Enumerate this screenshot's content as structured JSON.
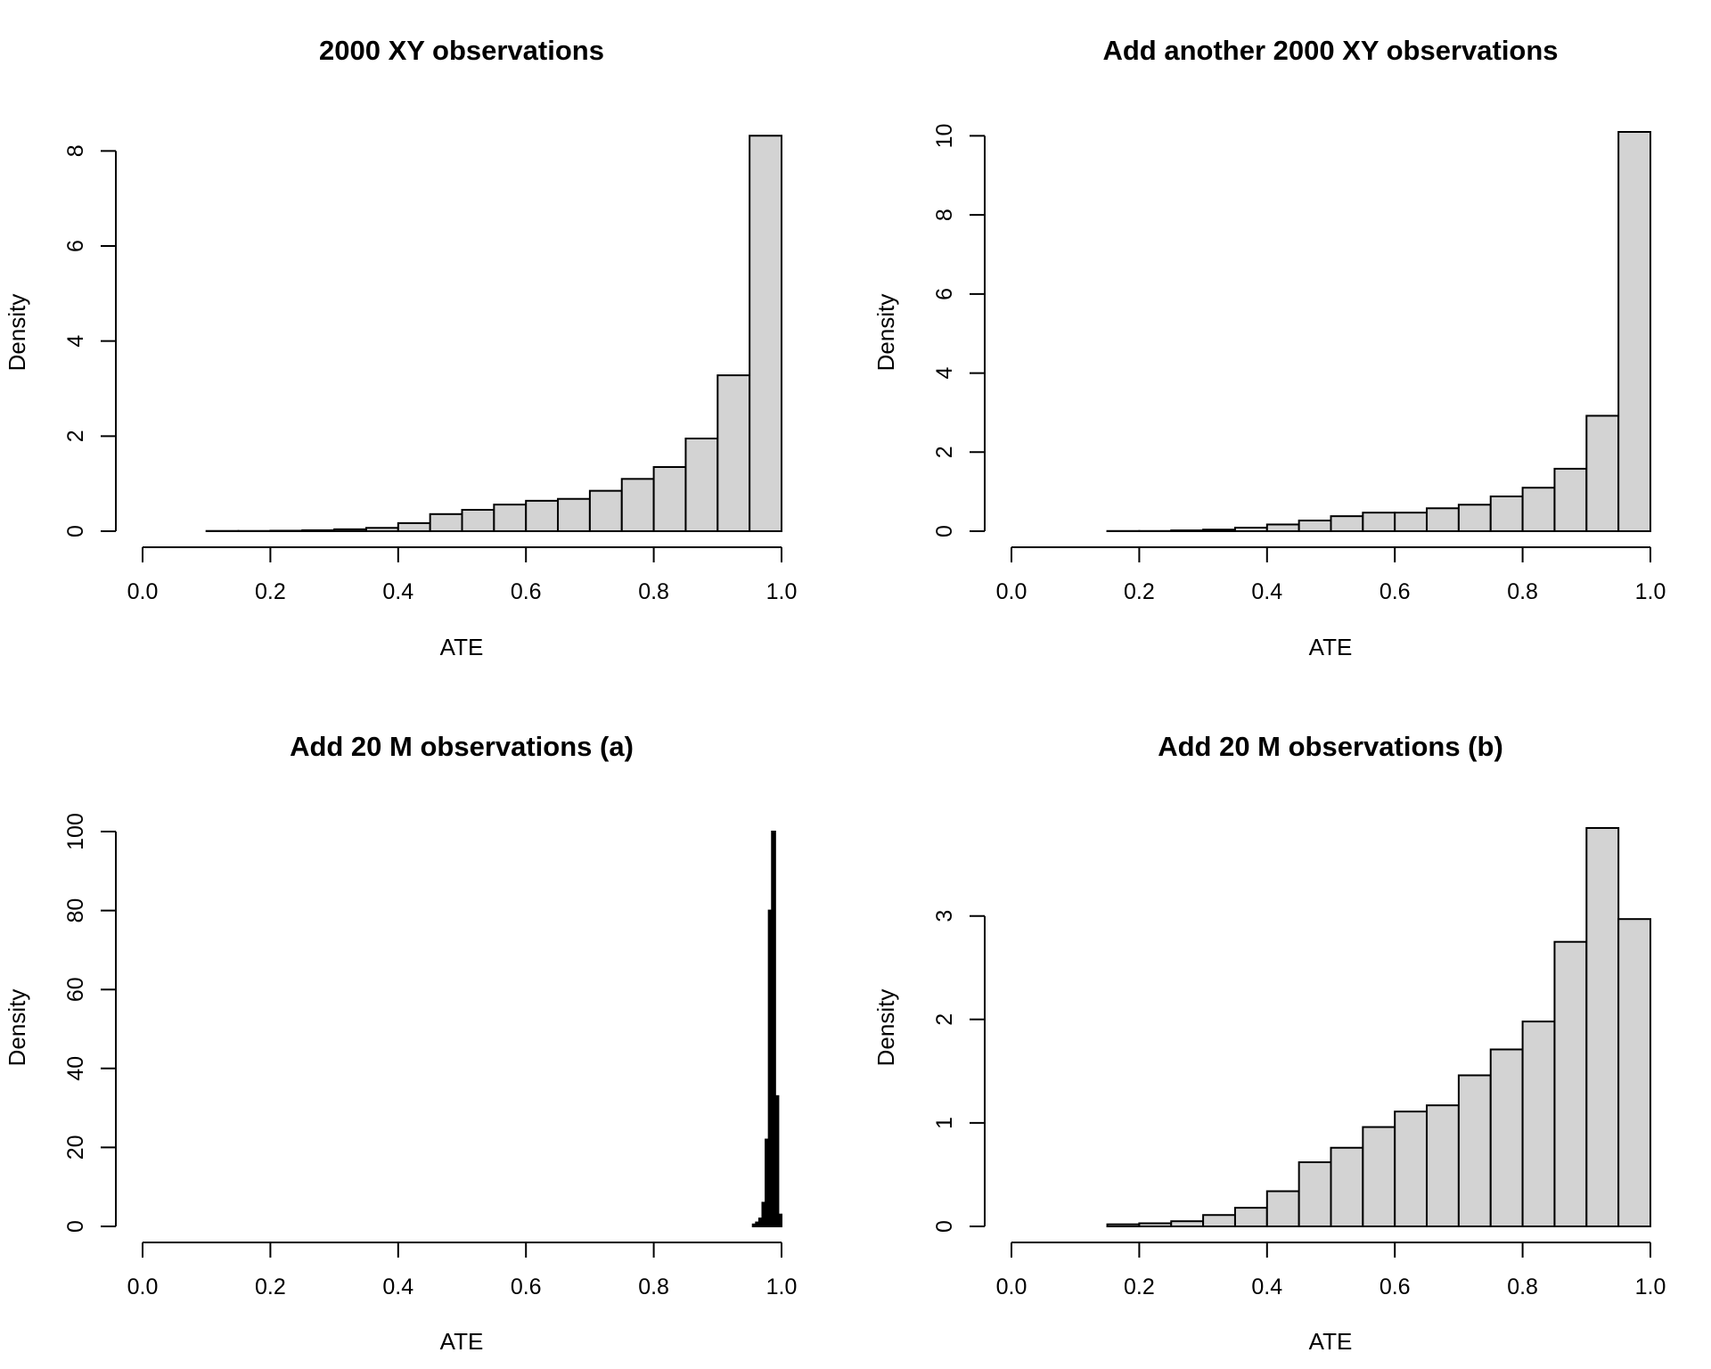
{
  "colors": {
    "bar_fill": "#d3d3d3",
    "bar_fill_dense": "#000000",
    "stroke": "#000000",
    "background": "#ffffff"
  },
  "chart_data": [
    {
      "type": "bar",
      "title": "2000 XY observations",
      "xlabel": "ATE",
      "ylabel": "Density",
      "xlim": [
        0.0,
        1.0
      ],
      "ylim": [
        0,
        8.4
      ],
      "xticks": [
        "0.0",
        "0.2",
        "0.4",
        "0.6",
        "0.8",
        "1.0"
      ],
      "yticks": [
        "0",
        "2",
        "4",
        "6",
        "8"
      ],
      "bins": [
        {
          "x0": 0.1,
          "x1": 0.15,
          "y": 0.005
        },
        {
          "x0": 0.15,
          "x1": 0.2,
          "y": 0.005
        },
        {
          "x0": 0.2,
          "x1": 0.25,
          "y": 0.01
        },
        {
          "x0": 0.25,
          "x1": 0.3,
          "y": 0.02
        },
        {
          "x0": 0.3,
          "x1": 0.35,
          "y": 0.04
        },
        {
          "x0": 0.35,
          "x1": 0.4,
          "y": 0.07
        },
        {
          "x0": 0.4,
          "x1": 0.45,
          "y": 0.17
        },
        {
          "x0": 0.45,
          "x1": 0.5,
          "y": 0.36
        },
        {
          "x0": 0.5,
          "x1": 0.55,
          "y": 0.45
        },
        {
          "x0": 0.55,
          "x1": 0.6,
          "y": 0.56
        },
        {
          "x0": 0.6,
          "x1": 0.65,
          "y": 0.64
        },
        {
          "x0": 0.65,
          "x1": 0.7,
          "y": 0.68
        },
        {
          "x0": 0.7,
          "x1": 0.75,
          "y": 0.85
        },
        {
          "x0": 0.75,
          "x1": 0.8,
          "y": 1.1
        },
        {
          "x0": 0.8,
          "x1": 0.85,
          "y": 1.35
        },
        {
          "x0": 0.85,
          "x1": 0.9,
          "y": 1.95
        },
        {
          "x0": 0.9,
          "x1": 0.95,
          "y": 3.28
        },
        {
          "x0": 0.95,
          "x1": 1.0,
          "y": 8.32
        }
      ]
    },
    {
      "type": "bar",
      "title": "Add another 2000 XY observations",
      "xlabel": "ATE",
      "ylabel": "Density",
      "xlim": [
        0.0,
        1.0
      ],
      "ylim": [
        0,
        10.1
      ],
      "xticks": [
        "0.0",
        "0.2",
        "0.4",
        "0.6",
        "0.8",
        "1.0"
      ],
      "yticks": [
        "0",
        "2",
        "4",
        "6",
        "8",
        "10"
      ],
      "bins": [
        {
          "x0": 0.05,
          "x1": 0.1,
          "y": 0.0
        },
        {
          "x0": 0.1,
          "x1": 0.15,
          "y": 0.0
        },
        {
          "x0": 0.15,
          "x1": 0.2,
          "y": 0.005
        },
        {
          "x0": 0.2,
          "x1": 0.25,
          "y": 0.005
        },
        {
          "x0": 0.25,
          "x1": 0.3,
          "y": 0.02
        },
        {
          "x0": 0.3,
          "x1": 0.35,
          "y": 0.04
        },
        {
          "x0": 0.35,
          "x1": 0.4,
          "y": 0.09
        },
        {
          "x0": 0.4,
          "x1": 0.45,
          "y": 0.17
        },
        {
          "x0": 0.45,
          "x1": 0.5,
          "y": 0.27
        },
        {
          "x0": 0.5,
          "x1": 0.55,
          "y": 0.38
        },
        {
          "x0": 0.55,
          "x1": 0.6,
          "y": 0.47
        },
        {
          "x0": 0.6,
          "x1": 0.65,
          "y": 0.47
        },
        {
          "x0": 0.65,
          "x1": 0.7,
          "y": 0.58
        },
        {
          "x0": 0.7,
          "x1": 0.75,
          "y": 0.67
        },
        {
          "x0": 0.75,
          "x1": 0.8,
          "y": 0.88
        },
        {
          "x0": 0.8,
          "x1": 0.85,
          "y": 1.1
        },
        {
          "x0": 0.85,
          "x1": 0.9,
          "y": 1.58
        },
        {
          "x0": 0.9,
          "x1": 0.95,
          "y": 2.92
        },
        {
          "x0": 0.95,
          "x1": 1.0,
          "y": 10.1
        }
      ]
    },
    {
      "type": "bar",
      "title": "Add 20 M observations (a)",
      "xlabel": "ATE",
      "ylabel": "Density",
      "xlim": [
        0.0,
        1.0
      ],
      "ylim": [
        0,
        100
      ],
      "xticks": [
        "0.0",
        "0.2",
        "0.4",
        "0.6",
        "0.8",
        "1.0"
      ],
      "yticks": [
        "0",
        "20",
        "40",
        "60",
        "80",
        "100"
      ],
      "dense": true,
      "bins": [
        {
          "x0": 0.955,
          "x1": 0.96,
          "y": 0.5
        },
        {
          "x0": 0.96,
          "x1": 0.965,
          "y": 1
        },
        {
          "x0": 0.965,
          "x1": 0.97,
          "y": 2
        },
        {
          "x0": 0.97,
          "x1": 0.975,
          "y": 6
        },
        {
          "x0": 0.975,
          "x1": 0.98,
          "y": 22
        },
        {
          "x0": 0.98,
          "x1": 0.985,
          "y": 80
        },
        {
          "x0": 0.985,
          "x1": 0.99,
          "y": 100
        },
        {
          "x0": 0.99,
          "x1": 0.995,
          "y": 33
        },
        {
          "x0": 0.995,
          "x1": 1.0,
          "y": 3
        }
      ]
    },
    {
      "type": "bar",
      "title": "Add 20 M observations (b)",
      "xlabel": "ATE",
      "ylabel": "Density",
      "xlim": [
        0.0,
        1.0
      ],
      "ylim": [
        0,
        3.85
      ],
      "xticks": [
        "0.0",
        "0.2",
        "0.4",
        "0.6",
        "0.8",
        "1.0"
      ],
      "yticks": [
        "0",
        "1",
        "2",
        "3"
      ],
      "bins": [
        {
          "x0": 0.05,
          "x1": 0.1,
          "y": 0.0
        },
        {
          "x0": 0.1,
          "x1": 0.15,
          "y": 0.0
        },
        {
          "x0": 0.15,
          "x1": 0.2,
          "y": 0.02
        },
        {
          "x0": 0.2,
          "x1": 0.25,
          "y": 0.03
        },
        {
          "x0": 0.25,
          "x1": 0.3,
          "y": 0.05
        },
        {
          "x0": 0.3,
          "x1": 0.35,
          "y": 0.11
        },
        {
          "x0": 0.35,
          "x1": 0.4,
          "y": 0.18
        },
        {
          "x0": 0.4,
          "x1": 0.45,
          "y": 0.34
        },
        {
          "x0": 0.45,
          "x1": 0.5,
          "y": 0.62
        },
        {
          "x0": 0.5,
          "x1": 0.55,
          "y": 0.76
        },
        {
          "x0": 0.55,
          "x1": 0.6,
          "y": 0.96
        },
        {
          "x0": 0.6,
          "x1": 0.65,
          "y": 1.11
        },
        {
          "x0": 0.65,
          "x1": 0.7,
          "y": 1.17
        },
        {
          "x0": 0.7,
          "x1": 0.75,
          "y": 1.46
        },
        {
          "x0": 0.75,
          "x1": 0.8,
          "y": 1.71
        },
        {
          "x0": 0.8,
          "x1": 0.85,
          "y": 1.98
        },
        {
          "x0": 0.85,
          "x1": 0.9,
          "y": 2.75
        },
        {
          "x0": 0.9,
          "x1": 0.95,
          "y": 3.85
        },
        {
          "x0": 0.95,
          "x1": 1.0,
          "y": 2.97
        }
      ]
    }
  ]
}
